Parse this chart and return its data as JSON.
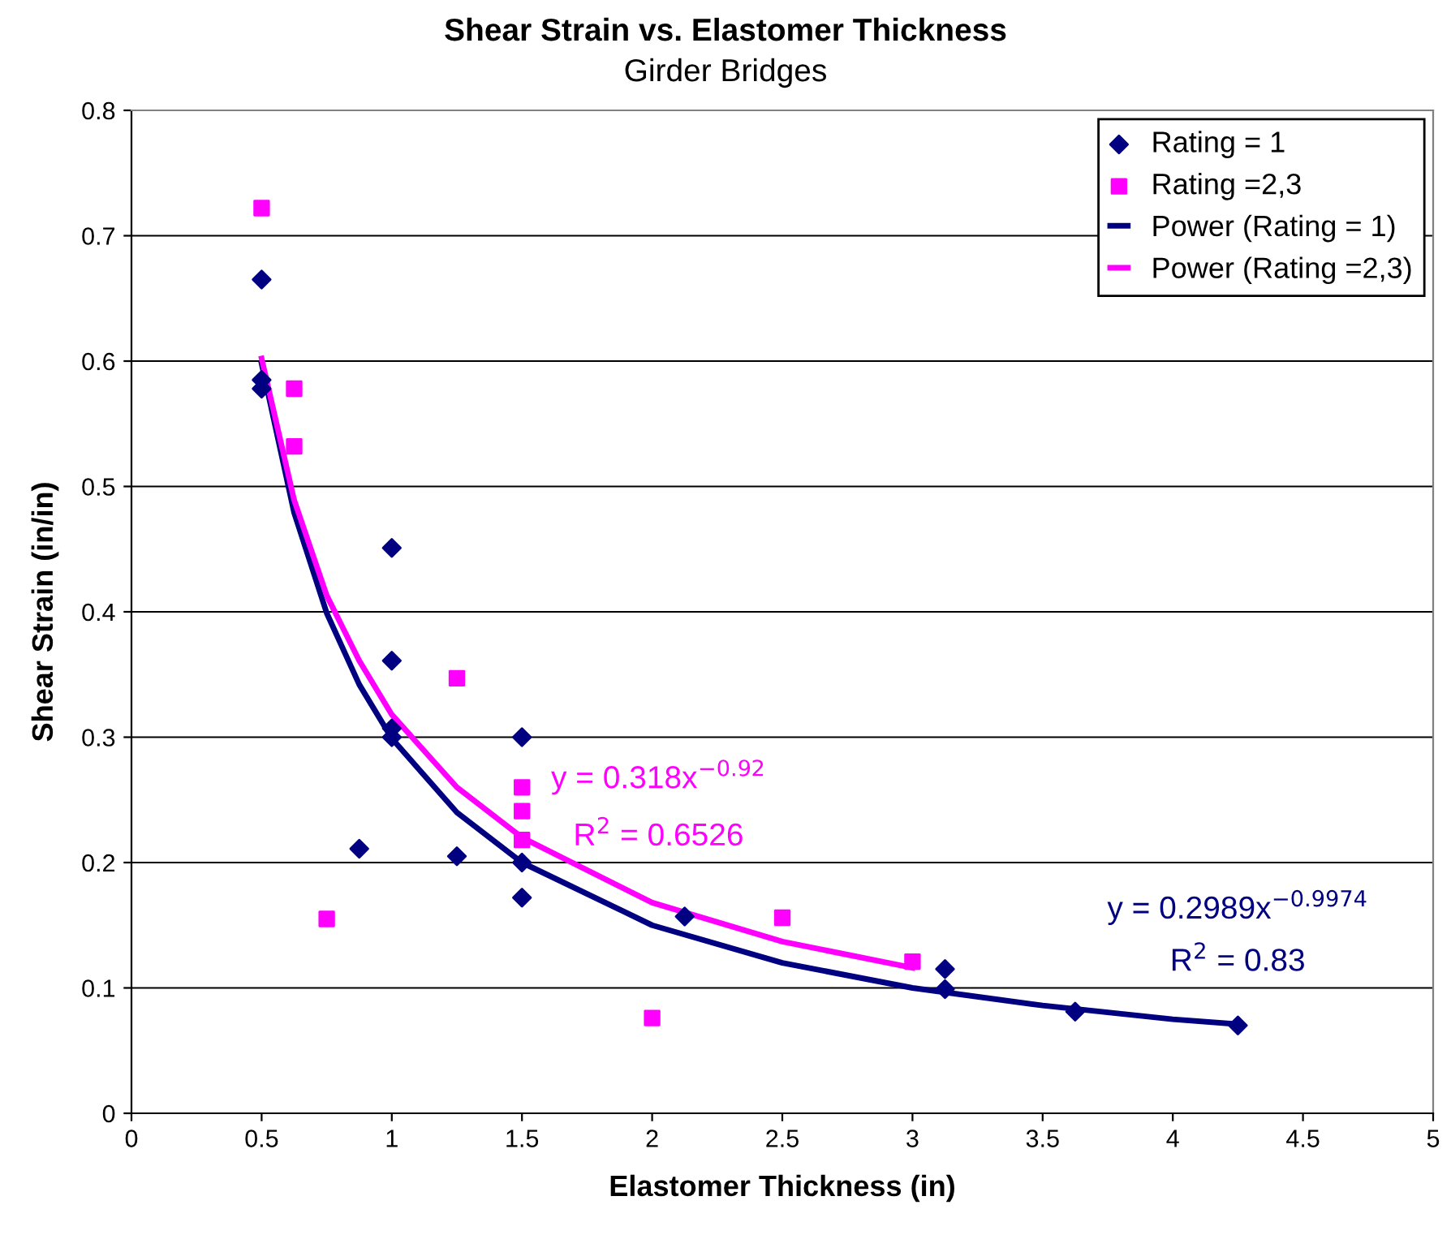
{
  "chart_data": {
    "type": "scatter",
    "title": "Shear Strain vs. Elastomer Thickness",
    "subtitle": "Girder Bridges",
    "xlabel": "Elastomer Thickness (in)",
    "ylabel": "Shear Strain (in/in)",
    "xlim": [
      0,
      5
    ],
    "xticks": [
      0,
      0.5,
      1,
      1.5,
      2,
      2.5,
      3,
      3.5,
      4,
      4.5,
      5
    ],
    "ylim": [
      0,
      0.8
    ],
    "yticks": [
      0,
      0.1,
      0.2,
      0.3,
      0.4,
      0.5,
      0.6,
      0.7,
      0.8
    ],
    "grid": "y",
    "legend": "top right",
    "series": [
      {
        "name": "Rating = 1",
        "marker": "diamond",
        "color": "#000080",
        "x": [
          0.5,
          0.5,
          0.5,
          1,
          1,
          1,
          1,
          0.875,
          1.25,
          1.5,
          1.5,
          1.5,
          2.125,
          3.125,
          3.125,
          3.625,
          4.25
        ],
        "values": [
          0.665,
          0.585,
          0.578,
          0.451,
          0.361,
          0.307,
          0.3,
          0.211,
          0.205,
          0.3,
          0.2,
          0.172,
          0.157,
          0.115,
          0.099,
          0.081,
          0.07
        ]
      },
      {
        "name": "Rating =2,3",
        "marker": "square",
        "color": "#ff00ff",
        "x": [
          0.5,
          0.625,
          0.625,
          0.75,
          1.25,
          1.5,
          1.5,
          1.5,
          2,
          2.5,
          3
        ],
        "values": [
          0.722,
          0.578,
          0.532,
          0.155,
          0.347,
          0.26,
          0.241,
          0.218,
          0.076,
          0.156,
          0.121
        ]
      },
      {
        "name": "Power (Rating = 1)",
        "type": "line",
        "marker": "none",
        "color": "#000080",
        "x": [
          0.5,
          0.625,
          0.75,
          0.875,
          1,
          1.25,
          1.5,
          2,
          2.5,
          3,
          3.5,
          4,
          4.25
        ],
        "values": [
          0.598,
          0.479,
          0.399,
          0.342,
          0.299,
          0.24,
          0.2,
          0.15,
          0.12,
          0.1,
          0.086,
          0.075,
          0.071
        ]
      },
      {
        "name": "Power (Rating =2,3)",
        "type": "line",
        "marker": "none",
        "color": "#ff00ff",
        "x": [
          0.5,
          0.625,
          0.75,
          0.875,
          1,
          1.25,
          1.5,
          2,
          2.5,
          3
        ],
        "values": [
          0.602,
          0.489,
          0.413,
          0.361,
          0.318,
          0.26,
          0.22,
          0.168,
          0.137,
          0.116
        ]
      }
    ],
    "annotations": [
      "y = 0.318x$^{−0.92}$",
      "R$^{2}$ = 0.6526",
      "y = 0.2989x$^{−0.9974}$",
      "R$^{2}$ = 0.83"
    ]
  }
}
